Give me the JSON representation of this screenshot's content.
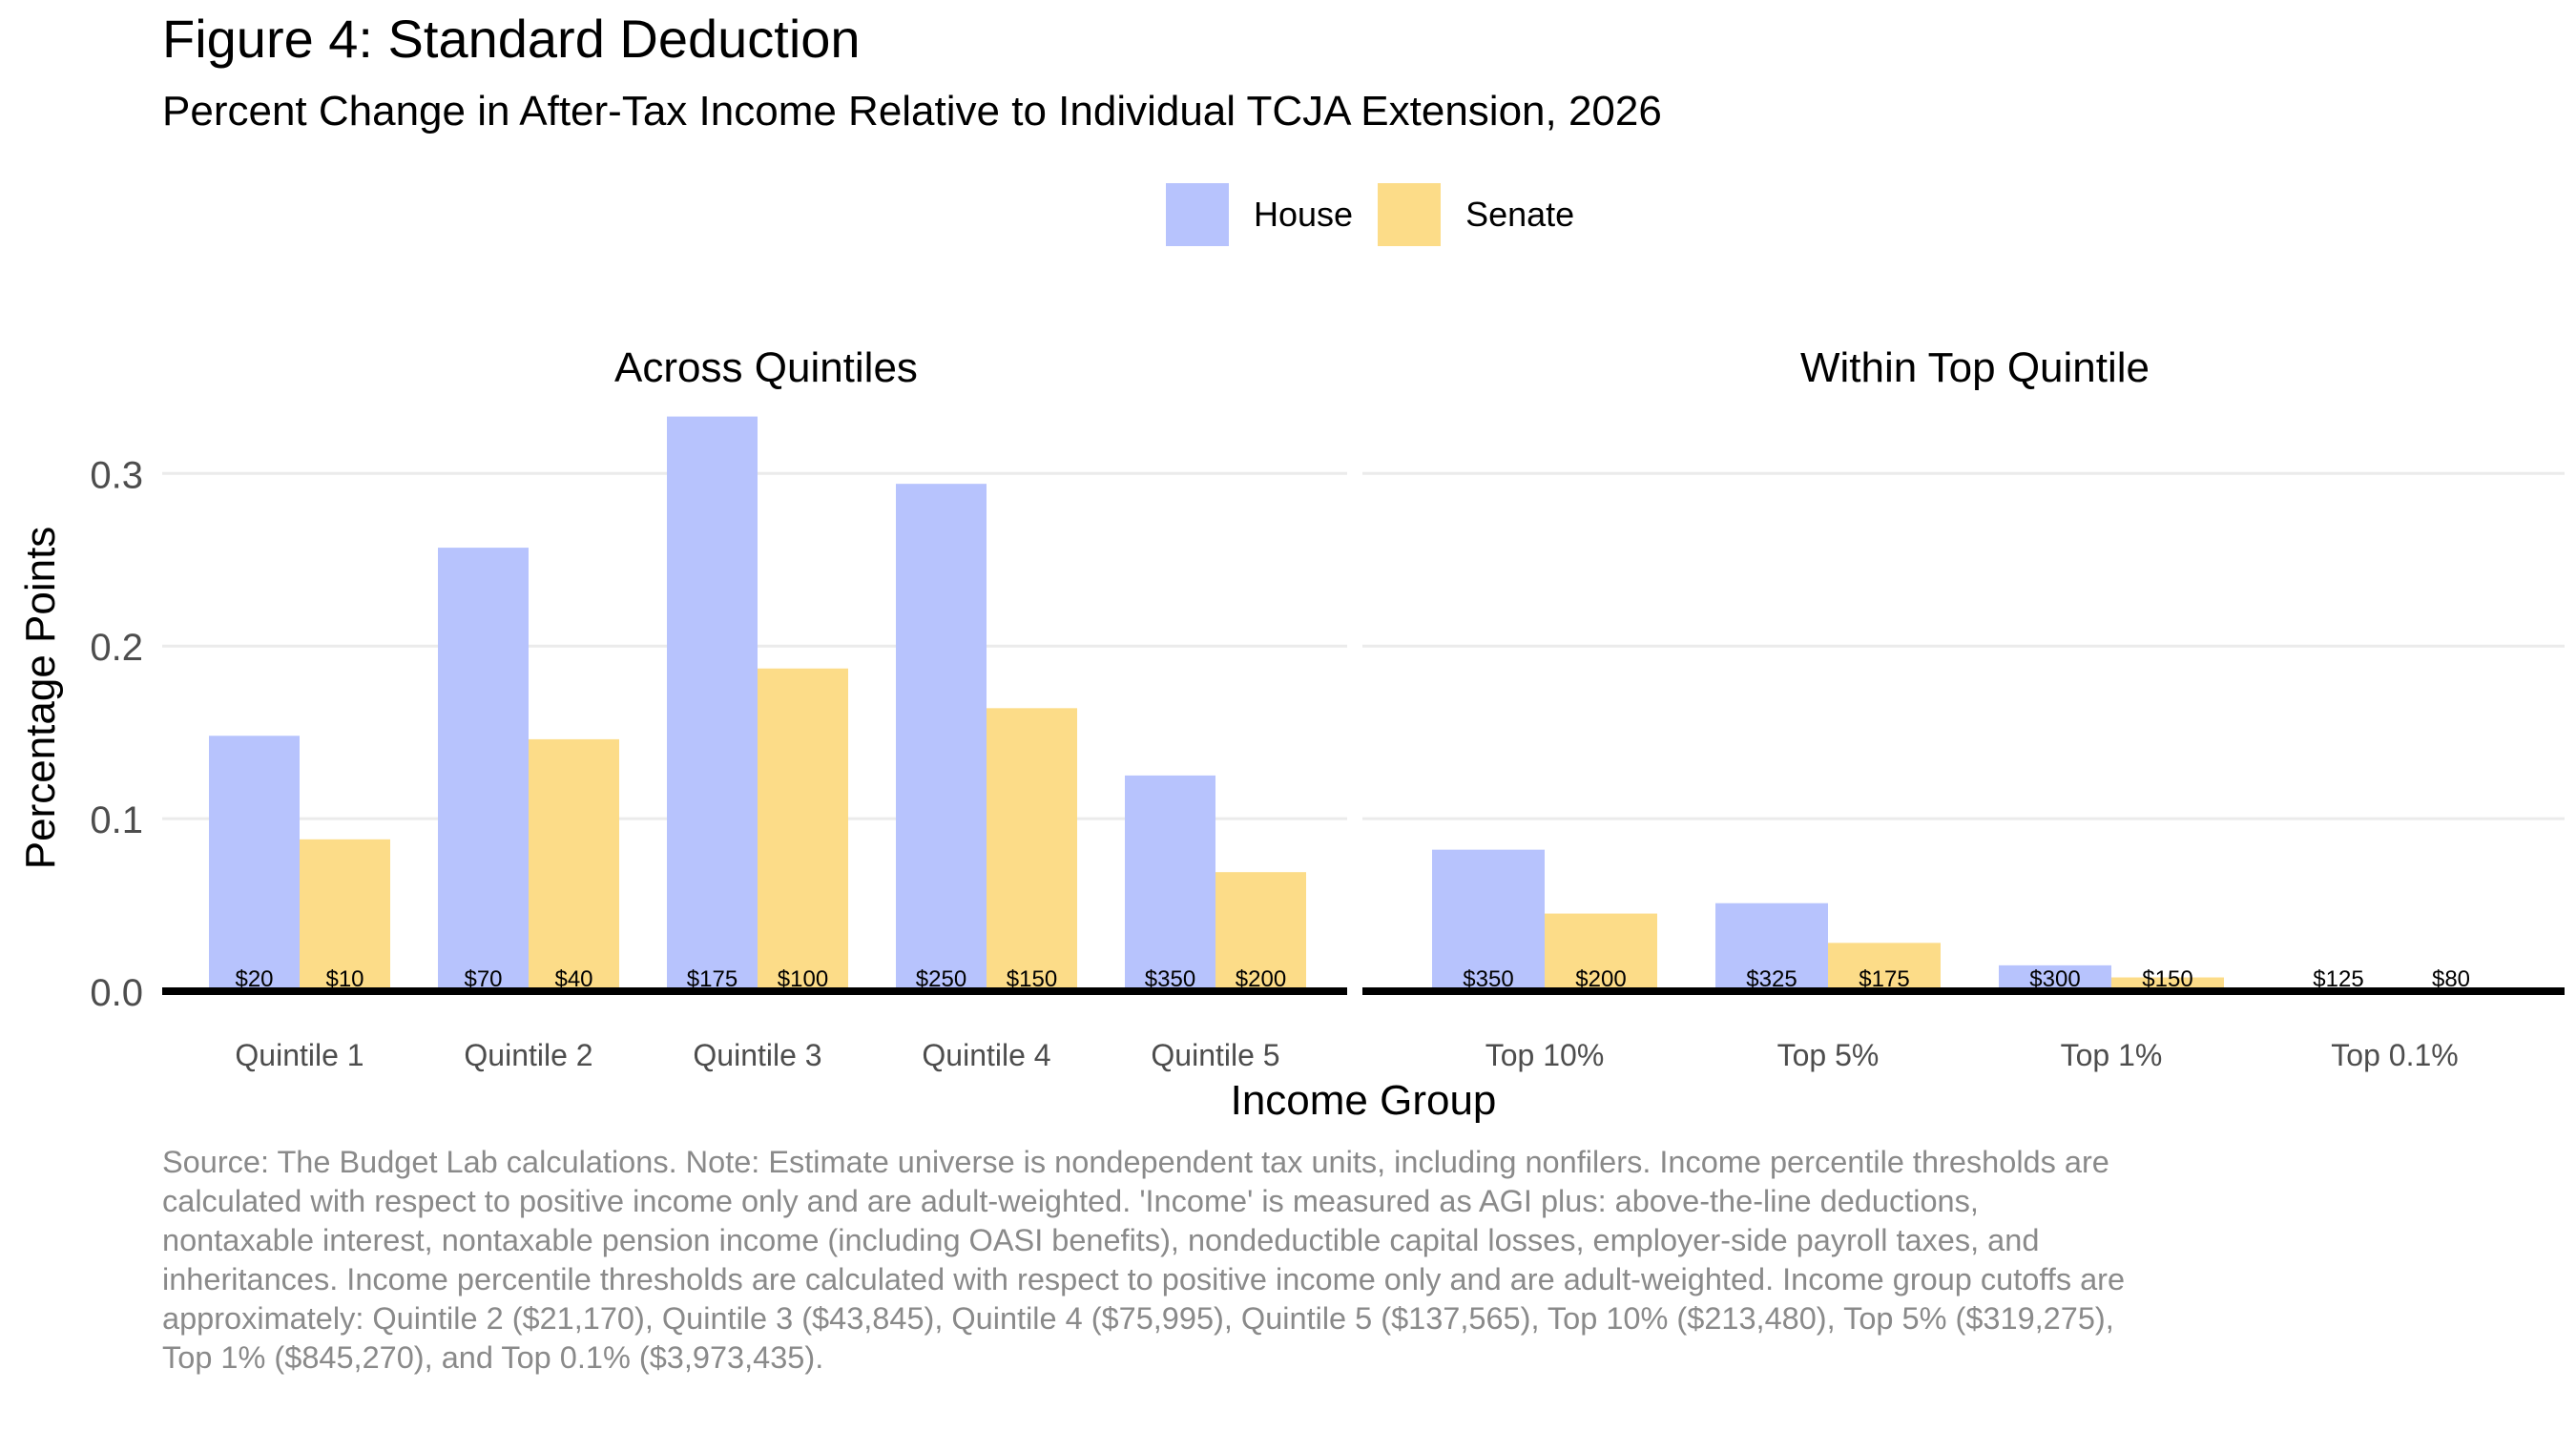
{
  "title": "Figure 4: Standard Deduction",
  "subtitle": "Percent Change in After-Tax Income Relative to Individual TCJA Extension, 2026",
  "legend": [
    {
      "name": "House",
      "color": "#b7c3fd"
    },
    {
      "name": "Senate",
      "color": "#fcdc88"
    }
  ],
  "note": "Source: The Budget Lab calculations. Note: Estimate universe is nondependent tax units, including nonfilers. Income percentile thresholds are calculated with respect to positive income only and are adult-weighted. 'Income' is measured as AGI plus: above-the-line deductions, nontaxable interest, nontaxable pension income (including OASI benefits), nondeductible capital losses, employer-side payroll taxes, and inheritances. Income percentile thresholds are calculated with respect to positive income only and are adult-weighted. Income group cutoffs are approximately: Quintile 2 ($21,170), Quintile 3 ($43,845), Quintile 4 ($75,995), Quintile 5 ($137,565), Top 10% ($213,480), Top 5% ($319,275), Top 1% ($845,270), and Top 0.1% ($3,973,435).",
  "chart_data": {
    "type": "bar",
    "xlabel": "Income Group",
    "ylabel": "Percentage Points",
    "ylim": [
      0,
      0.34
    ],
    "yticks": [
      0.0,
      0.1,
      0.2,
      0.3
    ],
    "ytick_labels": [
      "0.0",
      "0.1",
      "0.2",
      "0.3"
    ],
    "grid": true,
    "panels": [
      {
        "title": "Across Quintiles",
        "categories": [
          "Quintile 1",
          "Quintile 2",
          "Quintile 3",
          "Quintile 4",
          "Quintile 5"
        ],
        "series": [
          {
            "name": "House",
            "values": [
              0.148,
              0.257,
              0.333,
              0.294,
              0.125
            ],
            "labels": [
              "$20",
              "$70",
              "$175",
              "$250",
              "$350"
            ]
          },
          {
            "name": "Senate",
            "values": [
              0.088,
              0.146,
              0.187,
              0.164,
              0.069
            ],
            "labels": [
              "$10",
              "$40",
              "$100",
              "$150",
              "$200"
            ]
          }
        ]
      },
      {
        "title": "Within Top Quintile",
        "categories": [
          "Top 10%",
          "Top 5%",
          "Top 1%",
          "Top 0.1%"
        ],
        "series": [
          {
            "name": "House",
            "values": [
              0.082,
              0.051,
              0.015,
              0.0
            ],
            "labels": [
              "$350",
              "$325",
              "$300",
              "$125"
            ]
          },
          {
            "name": "Senate",
            "values": [
              0.045,
              0.028,
              0.008,
              0.0
            ],
            "labels": [
              "$200",
              "$175",
              "$150",
              "$80"
            ]
          }
        ]
      }
    ]
  }
}
